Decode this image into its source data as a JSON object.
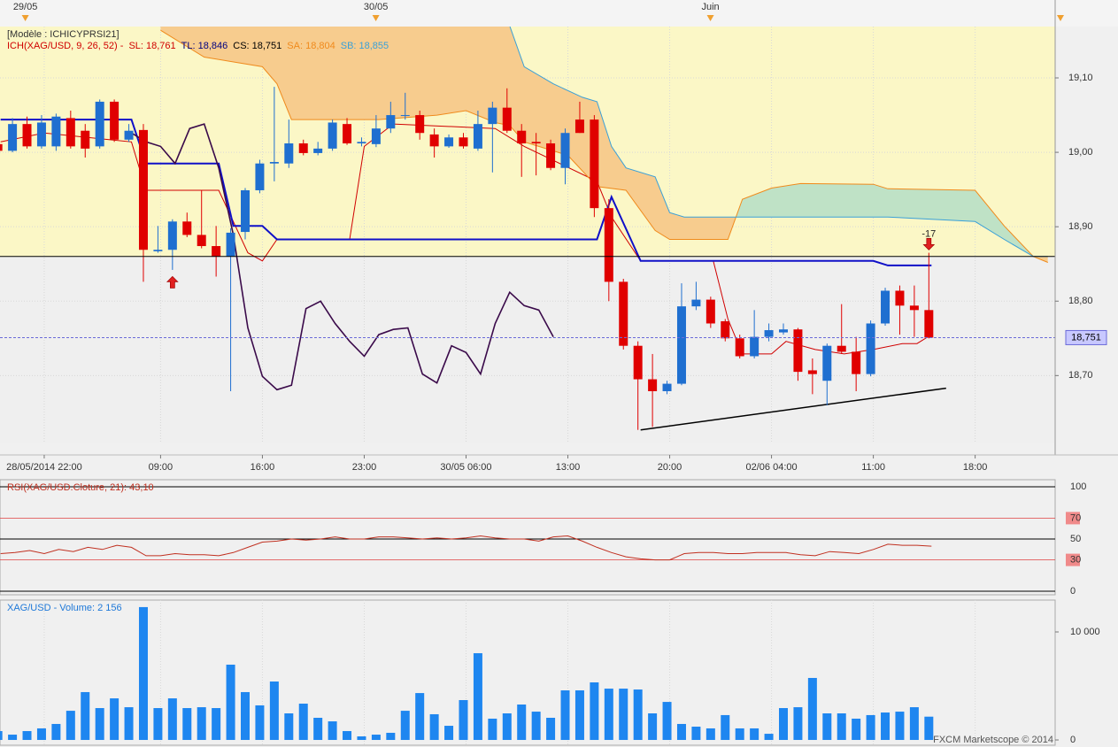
{
  "footer": "FXCM Marketscope © 2014",
  "chart_data": [
    {
      "type": "candlestick",
      "subtitle": "[Modèle : ICHICYPRSI21]",
      "legend_title": "ICH(XAG/USD, 9, 26, 52) -",
      "xlim": [
        -3.04,
        69.5
      ],
      "ylim": [
        18.61,
        19.169
      ],
      "yticks": [
        {
          "value": 19.1,
          "label": "19,10"
        },
        {
          "value": 19.0,
          "label": "19,00"
        },
        {
          "value": 18.9,
          "label": "18,90"
        },
        {
          "value": 18.8,
          "label": "18,80"
        },
        {
          "value": 18.7,
          "label": "18,70"
        }
      ],
      "xticks": [
        {
          "value": 0,
          "label": "28/05/2014 22:00"
        },
        {
          "value": 8,
          "label": "09:00"
        },
        {
          "value": 15,
          "label": "16:00"
        },
        {
          "value": 22,
          "label": "23:00"
        },
        {
          "value": 29,
          "label": "30/05 06:00"
        },
        {
          "value": 36,
          "label": "13:00"
        },
        {
          "value": 43,
          "label": "20:00"
        },
        {
          "value": 50,
          "label": "02/06 04:00"
        },
        {
          "value": 57,
          "label": "11:00"
        },
        {
          "value": 64,
          "label": "18:00"
        }
      ],
      "top_ticks": [
        {
          "value": -1.3,
          "label": "29/05"
        },
        {
          "value": 22.8,
          "label": "30/05"
        },
        {
          "value": 45.8,
          "label": "Juin"
        }
      ],
      "grid": true,
      "hline": 18.86,
      "last_price": {
        "value": 18.751,
        "label": "18,751"
      },
      "candles": {
        "up_color": "#1f6fd0",
        "down_color": "#e00000",
        "x": [
          -3,
          -2,
          -1,
          0,
          1,
          2,
          3,
          4,
          5,
          6,
          7,
          8,
          9,
          10,
          11,
          12,
          13,
          14,
          15,
          16,
          17,
          18,
          19,
          20,
          21,
          22,
          23,
          24,
          25,
          26,
          27,
          28,
          29,
          30,
          31,
          32,
          33,
          34,
          35,
          36,
          37,
          38,
          39,
          40,
          41,
          42,
          43,
          44,
          45,
          46,
          47,
          48,
          49,
          50,
          51,
          52,
          53,
          54,
          55,
          56,
          57,
          58,
          59,
          60,
          61
        ],
        "open": [
          19.011,
          19.002,
          19.038,
          19.008,
          19.008,
          19.046,
          19.029,
          19.008,
          19.068,
          19.017,
          19.03,
          18.867,
          18.869,
          18.907,
          18.889,
          18.874,
          18.86,
          18.893,
          18.949,
          18.985,
          18.985,
          19.012,
          18.999,
          19.005,
          19.038,
          19.012,
          19.011,
          19.032,
          19.049,
          19.05,
          19.024,
          19.008,
          19.02,
          19.005,
          19.038,
          19.06,
          19.029,
          19.014,
          19.012,
          18.979,
          19.044,
          19.044,
          18.925,
          18.826,
          18.74,
          18.695,
          18.679,
          18.689,
          18.793,
          18.802,
          18.773,
          18.75,
          18.726,
          18.752,
          18.758,
          18.762,
          18.707,
          18.693,
          18.74,
          18.732,
          18.702,
          18.77,
          18.814,
          18.794,
          18.788
        ],
        "high": [
          19.014,
          19.046,
          19.048,
          19.05,
          19.052,
          19.056,
          19.038,
          19.071,
          19.071,
          19.038,
          19.038,
          18.901,
          18.91,
          18.919,
          18.949,
          18.901,
          18.898,
          18.952,
          18.99,
          19.088,
          19.044,
          19.017,
          19.014,
          19.044,
          19.046,
          19.02,
          19.05,
          19.068,
          19.08,
          19.056,
          19.032,
          19.024,
          19.026,
          19.056,
          19.068,
          19.086,
          19.038,
          19.026,
          19.017,
          19.032,
          19.068,
          19.05,
          18.937,
          18.83,
          18.746,
          18.729,
          18.693,
          18.824,
          18.826,
          18.806,
          18.776,
          18.755,
          18.788,
          18.77,
          18.77,
          18.764,
          18.723,
          18.743,
          18.796,
          18.752,
          18.774,
          18.818,
          18.821,
          18.821,
          18.865
        ],
        "low": [
          19.0,
          19.0,
          19.005,
          19.005,
          19.002,
          19.005,
          18.993,
          19.005,
          19.014,
          19.014,
          18.826,
          18.865,
          18.842,
          18.886,
          18.871,
          18.833,
          18.679,
          18.883,
          18.945,
          18.961,
          18.979,
          18.996,
          18.996,
          19.002,
          19.01,
          19.008,
          19.007,
          19.026,
          19.044,
          19.017,
          18.993,
          19.006,
          19.005,
          19.002,
          18.973,
          19.026,
          18.967,
          18.969,
          18.976,
          18.957,
          19.026,
          18.913,
          18.8,
          18.735,
          18.627,
          18.631,
          18.675,
          18.687,
          18.788,
          18.764,
          18.746,
          18.723,
          18.723,
          18.746,
          18.755,
          18.693,
          18.675,
          18.66,
          18.729,
          18.679,
          18.699,
          18.767,
          18.755,
          18.752,
          18.75
        ],
        "close": [
          19.002,
          19.038,
          19.008,
          19.04,
          19.048,
          19.008,
          19.005,
          19.068,
          19.017,
          19.029,
          18.869,
          18.869,
          18.907,
          18.889,
          18.874,
          18.86,
          18.892,
          18.949,
          18.985,
          18.987,
          19.012,
          18.999,
          19.005,
          19.04,
          19.012,
          19.014,
          19.032,
          19.05,
          19.05,
          19.026,
          19.008,
          19.02,
          19.008,
          19.038,
          19.06,
          19.029,
          19.012,
          19.012,
          18.979,
          19.026,
          19.026,
          18.925,
          18.826,
          18.74,
          18.695,
          18.679,
          18.689,
          18.793,
          18.802,
          18.77,
          18.75,
          18.726,
          18.752,
          18.761,
          18.762,
          18.705,
          18.702,
          18.74,
          18.732,
          18.702,
          18.77,
          18.814,
          18.794,
          18.788,
          18.751
        ]
      },
      "series": [
        {
          "name": "SL: 18,761",
          "color": "#d00000",
          "width": 1,
          "x": [
            -3,
            0,
            6,
            7,
            12,
            14,
            15,
            16,
            21,
            22,
            24,
            31,
            33,
            38,
            39,
            41,
            46,
            47,
            48,
            50,
            51,
            53,
            55,
            57,
            59,
            60,
            61
          ],
          "values": [
            19.014,
            19.026,
            19.014,
            18.949,
            18.949,
            18.865,
            18.854,
            18.883,
            18.883,
            19.008,
            19.038,
            19.032,
            19.008,
            18.961,
            18.913,
            18.854,
            18.854,
            18.776,
            18.729,
            18.729,
            18.746,
            18.735,
            18.729,
            18.735,
            18.743,
            18.743,
            18.755
          ]
        },
        {
          "name": "TL: 18,846",
          "color": "#1010c8",
          "width": 2,
          "x": [
            -3,
            6,
            7,
            12,
            13,
            15,
            16,
            38,
            39,
            41,
            57,
            58,
            61
          ],
          "values": [
            19.044,
            19.044,
            18.985,
            18.985,
            18.901,
            18.901,
            18.883,
            18.883,
            18.94,
            18.854,
            18.854,
            18.848,
            18.848
          ]
        },
        {
          "name": "CS: 18,751",
          "color": "#3a0a4a",
          "width": 1.6,
          "x": [
            6,
            7,
            8,
            9,
            10,
            11,
            12,
            13,
            14,
            15,
            16,
            17,
            18,
            19,
            20,
            21,
            22,
            23,
            24,
            25,
            26,
            27,
            28,
            29,
            30,
            31,
            32,
            33,
            34,
            35
          ],
          "values": [
            19.026,
            19.014,
            19.008,
            18.985,
            19.032,
            19.038,
            18.979,
            18.889,
            18.764,
            18.699,
            18.681,
            18.687,
            18.79,
            18.8,
            18.77,
            18.746,
            18.726,
            18.755,
            18.762,
            18.764,
            18.702,
            18.69,
            18.74,
            18.731,
            18.702,
            18.77,
            18.812,
            18.794,
            18.788,
            18.752
          ]
        },
        {
          "name": "SA: 18,804",
          "color": "#f08a1c",
          "width": 1,
          "x": [
            8,
            11,
            15,
            16,
            17,
            23,
            27,
            29,
            31,
            32,
            33,
            36,
            38,
            40,
            42,
            43,
            47,
            48,
            50,
            52,
            57,
            58,
            64,
            66,
            68,
            69
          ],
          "values": [
            19.164,
            19.128,
            19.115,
            19.092,
            19.044,
            19.044,
            19.05,
            19.056,
            19.04,
            19.036,
            19.014,
            18.996,
            18.954,
            18.949,
            18.895,
            18.883,
            18.883,
            18.937,
            18.952,
            18.958,
            18.957,
            18.951,
            18.949,
            18.901,
            18.86,
            18.852
          ]
        },
        {
          "name": "SB: 18,855",
          "color": "#3aa0d8",
          "width": 1,
          "x": [
            -3,
            32,
            33,
            35,
            37,
            38,
            39,
            40,
            42,
            43,
            44,
            58,
            64,
            66,
            68,
            69
          ],
          "values": [
            19.17,
            19.17,
            19.115,
            19.092,
            19.074,
            19.068,
            19.008,
            18.979,
            18.967,
            18.919,
            18.913,
            18.913,
            18.907,
            18.883,
            18.86,
            18.86
          ]
        }
      ],
      "cloud_colors": {
        "bear": "#f7cc8e",
        "bull": "#bfe2c6"
      },
      "trendline": {
        "color": "#000000",
        "x": [
          41,
          62
        ],
        "values": [
          18.627,
          18.683
        ]
      },
      "markers": [
        {
          "x": 9,
          "value": 18.826,
          "direction": "up",
          "color": "#e02020"
        },
        {
          "x": 61,
          "value": 18.876,
          "direction": "down",
          "color": "#e02020",
          "label": "-17"
        }
      ]
    },
    {
      "type": "line",
      "title": "RSI(XAG/USD.Cloture, 21): 43,10",
      "xlim": [
        -3.04,
        69.5
      ],
      "ylim": [
        -3.4,
        106.8
      ],
      "yticks": [
        100,
        70,
        50,
        30,
        0
      ],
      "levels": [
        70,
        30
      ],
      "level_color": "#e04040",
      "color": "#c03020",
      "x": [
        -3,
        -2,
        -1,
        0,
        1,
        2,
        3,
        4,
        5,
        6,
        7,
        8,
        9,
        10,
        11,
        12,
        13,
        14,
        15,
        16,
        17,
        18,
        19,
        20,
        21,
        22,
        23,
        24,
        25,
        26,
        27,
        28,
        29,
        30,
        31,
        32,
        33,
        34,
        35,
        36,
        37,
        38,
        39,
        40,
        41,
        42,
        43,
        44,
        45,
        46,
        47,
        48,
        49,
        50,
        51,
        52,
        53,
        54,
        55,
        56,
        57,
        58,
        59,
        60,
        61
      ],
      "values": [
        36,
        37,
        39,
        36,
        40,
        38,
        42,
        40,
        44,
        42,
        34,
        34,
        36,
        35,
        35,
        34,
        37,
        42,
        47,
        48,
        50,
        49,
        50,
        52,
        50,
        50,
        52,
        52,
        51,
        50,
        51,
        50,
        51,
        53,
        51,
        50,
        50,
        48,
        52,
        53,
        48,
        42,
        37,
        33,
        31,
        30,
        30,
        36,
        37,
        37,
        36,
        36,
        37,
        37,
        37,
        35,
        34,
        38,
        37,
        36,
        40,
        45,
        44,
        44,
        43.1
      ]
    },
    {
      "type": "bar",
      "title": "XAG/USD - Volume: 2 156",
      "xlim": [
        -3.04,
        69.5
      ],
      "ylim": [
        -490,
        12950
      ],
      "yticks": [
        {
          "value": 10000,
          "label": "10 000"
        },
        0
      ],
      "xticks": [
        0,
        8,
        15,
        22,
        29,
        36,
        43,
        50,
        57,
        64
      ],
      "color": "#1e86f0",
      "x": [
        -3,
        -2,
        -1,
        0,
        1,
        2,
        3,
        4,
        5,
        6,
        7,
        8,
        9,
        10,
        11,
        12,
        13,
        14,
        15,
        16,
        17,
        18,
        19,
        20,
        21,
        22,
        23,
        24,
        25,
        26,
        27,
        28,
        29,
        30,
        31,
        32,
        33,
        34,
        35,
        36,
        37,
        38,
        39,
        40,
        41,
        42,
        43,
        44,
        45,
        46,
        47,
        48,
        49,
        50,
        51,
        52,
        53,
        54,
        55,
        56,
        57,
        58,
        59,
        60,
        61
      ],
      "values": [
        820,
        490,
        820,
        1070,
        1480,
        2700,
        4430,
        2950,
        3850,
        3030,
        12300,
        2950,
        3850,
        2950,
        3030,
        2950,
        6970,
        4430,
        3200,
        5410,
        2460,
        3360,
        2050,
        1720,
        820,
        330,
        490,
        660,
        2700,
        4340,
        2380,
        1310,
        3690,
        8030,
        1970,
        2460,
        3280,
        2620,
        2050,
        4590,
        4590,
        5330,
        4750,
        4750,
        4670,
        2460,
        3520,
        1480,
        1230,
        1070,
        2300,
        1070,
        1070,
        570,
        2950,
        3030,
        5740,
        2460,
        2460,
        1970,
        2300,
        2540,
        2620,
        3030,
        2156
      ]
    }
  ]
}
